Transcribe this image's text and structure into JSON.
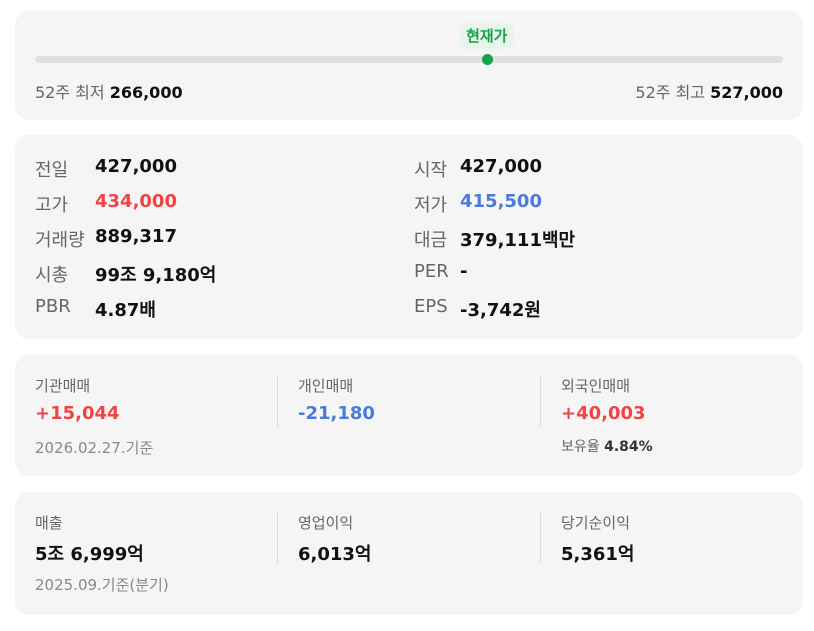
{
  "range": {
    "current_badge": "현재가",
    "current_position": 0.604,
    "low_label": "52주 최저",
    "low_value": "266,000",
    "high_label": "52주 최고",
    "high_value": "527,000"
  },
  "quote": {
    "left": [
      {
        "label": "전일",
        "value": "427,000",
        "tone": ""
      },
      {
        "label": "고가",
        "value": "434,000",
        "tone": "up"
      },
      {
        "label": "거래량",
        "value": "889,317",
        "tone": ""
      },
      {
        "label": "시총",
        "value": "99조 9,180억",
        "tone": ""
      },
      {
        "label": "PBR",
        "value": "4.87배",
        "tone": ""
      }
    ],
    "right": [
      {
        "label": "시작",
        "value": "427,000",
        "tone": ""
      },
      {
        "label": "저가",
        "value": "415,500",
        "tone": "down"
      },
      {
        "label": "대금",
        "value": "379,111백만",
        "tone": ""
      },
      {
        "label": "PER",
        "value": "-",
        "tone": ""
      },
      {
        "label": "EPS",
        "value": "-3,742원",
        "tone": ""
      }
    ]
  },
  "trading": {
    "institution_label": "기관매매",
    "institution_value": "+15,044",
    "individual_label": "개인매매",
    "individual_value": "-21,180",
    "foreign_label": "외국인매매",
    "foreign_value": "+40,003",
    "holding_label": "보유율",
    "holding_value": "4.84%",
    "basis": "2026.02.27.기준"
  },
  "earnings": {
    "sales_label": "매출",
    "sales_value": "5조 6,999억",
    "op_label": "영업이익",
    "op_value": "6,013억",
    "net_label": "당기순이익",
    "net_value": "5,361억",
    "basis": "2025.09.기준(분기)"
  },
  "colors": {
    "up": "#ef4444",
    "down": "#4a7bd8",
    "current": "#16a34a"
  }
}
